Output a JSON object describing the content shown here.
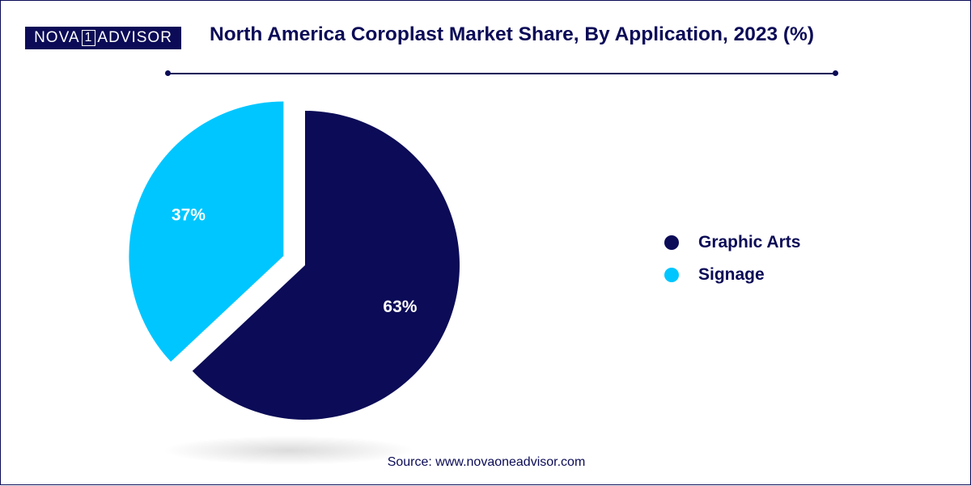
{
  "logo": {
    "left": "NOVA",
    "mark": "1",
    "right": "ADVISOR"
  },
  "chart_data": {
    "type": "pie",
    "title": "North America Coroplast Market Share, By Application, 2023 (%)",
    "categories": [
      "Graphic Arts",
      "Signage"
    ],
    "values": [
      63,
      37
    ],
    "labels": [
      "63%",
      "37%"
    ],
    "colors": [
      "#0b0b57",
      "#00c6ff"
    ],
    "exploded": "Signage",
    "legend_position": "right"
  },
  "source": "Source: www.novaoneadvisor.com"
}
